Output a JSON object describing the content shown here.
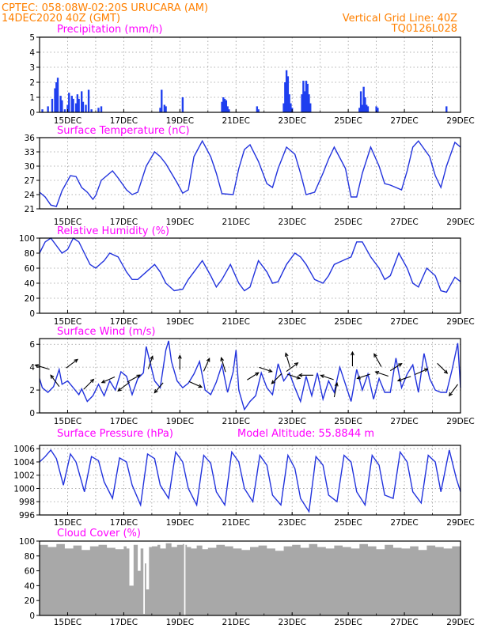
{
  "header": {
    "line1": "CPTEC:   058:08W-02:20S   URUCARA (AM)",
    "line2": "14DEC2020 40Z (GMT)",
    "grid_note": "Vertical Grid Line: 40Z",
    "code": "TQ0126L028"
  },
  "colors": {
    "header": "#ff8000",
    "panel_title": "#ff00ff",
    "series": "#2233dd",
    "bar": "#1f3fef",
    "cloud": "#a8a8a8",
    "arrow": "#000000"
  },
  "chart_data": [
    {
      "id": "precip",
      "type": "bar",
      "title": "Precipitation (mm/h)",
      "ylim": [
        0,
        5
      ],
      "yticks": [
        0,
        1,
        2,
        3,
        4,
        5
      ],
      "xticks": [
        "15DEC",
        "17DEC",
        "19DEC",
        "21DEC",
        "23DEC",
        "25DEC",
        "27DEC",
        "29DEC"
      ],
      "xlim_days": [
        14.0,
        29.0
      ],
      "grid": true,
      "x_day": [
        14.1,
        14.3,
        14.45,
        14.55,
        14.6,
        14.65,
        14.75,
        14.8,
        14.9,
        15.0,
        15.05,
        15.15,
        15.2,
        15.3,
        15.35,
        15.4,
        15.5,
        15.55,
        15.65,
        15.75,
        15.85,
        16.1,
        16.2,
        18.3,
        18.35,
        18.45,
        18.5,
        19.1,
        20.5,
        20.55,
        20.6,
        20.65,
        20.7,
        20.75,
        21.75,
        21.8,
        22.7,
        22.75,
        22.8,
        22.85,
        22.9,
        22.95,
        23.0,
        23.35,
        23.4,
        23.45,
        23.5,
        23.55,
        23.6,
        23.65,
        25.4,
        25.45,
        25.5,
        25.55,
        25.6,
        25.65,
        25.7,
        26.0,
        26.05,
        28.5
      ],
      "values": [
        0.2,
        0.4,
        0.9,
        1.6,
        2.0,
        2.3,
        1.1,
        0.8,
        0.2,
        0.5,
        1.3,
        1.1,
        0.9,
        0.6,
        1.2,
        0.9,
        1.4,
        0.7,
        0.5,
        1.5,
        0.2,
        0.3,
        0.4,
        0.3,
        1.5,
        0.5,
        0.4,
        1.0,
        0.7,
        1.0,
        0.9,
        0.8,
        0.4,
        0.2,
        0.4,
        0.2,
        0.6,
        2.0,
        2.8,
        2.4,
        1.2,
        0.6,
        0.3,
        1.2,
        2.1,
        1.4,
        2.1,
        1.9,
        1.2,
        0.6,
        0.3,
        1.4,
        0.5,
        1.7,
        1.0,
        0.5,
        0.4,
        0.4,
        0.3,
        0.4
      ]
    },
    {
      "id": "temp",
      "type": "line",
      "title": "Surface Temperature (nC)",
      "ylim": [
        21,
        36
      ],
      "yticks": [
        21,
        24,
        27,
        30,
        33,
        36
      ],
      "xticks": [
        "15DEC",
        "17DEC",
        "19DEC",
        "21DEC",
        "23DEC",
        "25DEC",
        "27DEC",
        "29DEC"
      ],
      "xlim_days": [
        14.0,
        29.0
      ],
      "grid": true,
      "x_day": [
        14.0,
        14.2,
        14.4,
        14.6,
        14.8,
        15.1,
        15.3,
        15.5,
        15.7,
        15.9,
        16.0,
        16.2,
        16.4,
        16.6,
        16.8,
        17.1,
        17.3,
        17.5,
        17.8,
        18.1,
        18.3,
        18.5,
        18.9,
        19.1,
        19.3,
        19.5,
        19.8,
        20.1,
        20.3,
        20.5,
        20.9,
        21.1,
        21.3,
        21.5,
        21.8,
        22.1,
        22.3,
        22.5,
        22.8,
        23.1,
        23.3,
        23.5,
        23.8,
        24.1,
        24.3,
        24.5,
        24.9,
        25.1,
        25.3,
        25.5,
        25.8,
        26.1,
        26.3,
        26.5,
        26.9,
        27.1,
        27.3,
        27.5,
        27.9,
        28.1,
        28.3,
        28.5,
        28.8,
        29.0
      ],
      "values": [
        24.5,
        23.5,
        21.8,
        21.5,
        24.8,
        28,
        27.8,
        25.5,
        24.5,
        23,
        23.8,
        27,
        28,
        29,
        27.5,
        25,
        24,
        24.5,
        30,
        33,
        32,
        30.5,
        26.5,
        24.3,
        25,
        32,
        35.3,
        32,
        28.5,
        24.2,
        24,
        29.5,
        33.5,
        34.5,
        31,
        26.3,
        25.5,
        29.5,
        34,
        32.5,
        28.5,
        24,
        24.5,
        28.5,
        31.5,
        34,
        29.5,
        23.5,
        23.5,
        28.5,
        34,
        30,
        26.3,
        26,
        25,
        29,
        34,
        35.3,
        32,
        28,
        25.5,
        30,
        35,
        34
      ]
    },
    {
      "id": "rh",
      "type": "line",
      "title": "Relative Humidity (%)",
      "ylim": [
        0,
        100
      ],
      "yticks": [
        0,
        20,
        40,
        60,
        80,
        100
      ],
      "xticks": [
        "15DEC",
        "17DEC",
        "19DEC",
        "21DEC",
        "23DEC",
        "25DEC",
        "27DEC",
        "29DEC"
      ],
      "xlim_days": [
        14.0,
        29.0
      ],
      "grid": true,
      "x_day": [
        14.0,
        14.2,
        14.4,
        14.6,
        14.8,
        15.0,
        15.2,
        15.4,
        15.6,
        15.8,
        16.0,
        16.3,
        16.5,
        16.8,
        17.1,
        17.3,
        17.5,
        17.8,
        18.1,
        18.3,
        18.5,
        18.8,
        19.1,
        19.3,
        19.5,
        19.8,
        20.1,
        20.3,
        20.5,
        20.8,
        21.1,
        21.3,
        21.5,
        21.8,
        22.1,
        22.3,
        22.5,
        22.8,
        23.1,
        23.3,
        23.5,
        23.8,
        24.1,
        24.3,
        24.5,
        24.8,
        25.1,
        25.3,
        25.5,
        25.8,
        26.1,
        26.3,
        26.5,
        26.8,
        27.1,
        27.3,
        27.5,
        27.8,
        28.1,
        28.3,
        28.5,
        28.8,
        29.0
      ],
      "values": [
        80,
        95,
        100,
        90,
        80,
        85,
        100,
        95,
        80,
        65,
        60,
        70,
        80,
        75,
        55,
        45,
        45,
        55,
        65,
        55,
        40,
        30,
        32,
        45,
        55,
        70,
        50,
        35,
        45,
        65,
        40,
        30,
        35,
        70,
        55,
        40,
        42,
        65,
        80,
        75,
        65,
        45,
        40,
        50,
        65,
        70,
        75,
        95,
        95,
        75,
        60,
        45,
        50,
        80,
        60,
        40,
        35,
        60,
        50,
        30,
        28,
        48,
        42
      ]
    },
    {
      "id": "wind",
      "type": "line",
      "title": "Surface Wind (m/s)",
      "ylim": [
        0,
        6.5
      ],
      "yticks": [
        0,
        2,
        4,
        6
      ],
      "xticks": [
        "15DEC",
        "17DEC",
        "19DEC",
        "21DEC",
        "23DEC",
        "25DEC",
        "27DEC",
        "29DEC"
      ],
      "xlim_days": [
        14.0,
        29.0
      ],
      "grid": true,
      "x_day": [
        14.0,
        14.1,
        14.3,
        14.5,
        14.7,
        14.8,
        15.0,
        15.2,
        15.4,
        15.5,
        15.7,
        15.9,
        16.1,
        16.3,
        16.5,
        16.7,
        16.9,
        17.1,
        17.3,
        17.5,
        17.7,
        17.8,
        17.9,
        18.1,
        18.3,
        18.5,
        18.6,
        18.7,
        18.9,
        19.1,
        19.3,
        19.5,
        19.7,
        19.9,
        20.1,
        20.3,
        20.5,
        20.7,
        20.9,
        21.0,
        21.1,
        21.3,
        21.5,
        21.7,
        21.9,
        22.1,
        22.3,
        22.5,
        22.7,
        22.9,
        23.1,
        23.3,
        23.5,
        23.7,
        23.9,
        24.1,
        24.3,
        24.5,
        24.7,
        24.9,
        25.1,
        25.3,
        25.5,
        25.7,
        25.9,
        26.1,
        26.3,
        26.5,
        26.7,
        26.9,
        27.1,
        27.3,
        27.5,
        27.7,
        27.9,
        28.1,
        28.3,
        28.5,
        28.7,
        28.9,
        29.0
      ],
      "values": [
        3.0,
        2.2,
        1.8,
        2.3,
        3.8,
        2.5,
        2.8,
        2.2,
        1.6,
        2.1,
        1.0,
        1.5,
        2.5,
        1.5,
        2.8,
        2.0,
        3.6,
        3.2,
        1.6,
        3.0,
        3.5,
        5.8,
        4.8,
        2.8,
        2.2,
        5.5,
        6.3,
        4.5,
        2.8,
        2.2,
        2.6,
        3.4,
        4.5,
        2.0,
        1.6,
        2.7,
        4.2,
        1.8,
        3.6,
        5.5,
        2.0,
        0.3,
        1.0,
        1.5,
        3.5,
        2.2,
        1.6,
        4.3,
        2.8,
        3.5,
        2.2,
        1.0,
        3.2,
        1.5,
        3.5,
        1.2,
        2.8,
        1.8,
        4.0,
        2.5,
        1.0,
        3.8,
        2.0,
        3.4,
        1.2,
        3.0,
        1.8,
        1.8,
        4.8,
        2.2,
        3.4,
        4.2,
        1.8,
        5.2,
        3.0,
        2.0,
        1.8,
        1.8,
        3.8,
        6.1,
        2.2
      ],
      "arrows": [
        {
          "x_day": 14.1,
          "y": 4.0,
          "dx": -1.0,
          "dy": 0.3
        },
        {
          "x_day": 14.55,
          "y": 2.8,
          "dx": -0.6,
          "dy": 0.8
        },
        {
          "x_day": 15.15,
          "y": 4.3,
          "dx": 0.8,
          "dy": 0.6
        },
        {
          "x_day": 15.75,
          "y": 2.5,
          "dx": 0.7,
          "dy": 0.7
        },
        {
          "x_day": 16.45,
          "y": 2.9,
          "dx": -0.9,
          "dy": -0.4
        },
        {
          "x_day": 17.0,
          "y": 2.3,
          "dx": -0.8,
          "dy": -0.6
        },
        {
          "x_day": 17.35,
          "y": 3.0,
          "dx": 0.9,
          "dy": 0.5
        },
        {
          "x_day": 17.95,
          "y": 4.4,
          "dx": 0.3,
          "dy": 0.9
        },
        {
          "x_day": 18.25,
          "y": 2.2,
          "dx": -0.6,
          "dy": -0.7
        },
        {
          "x_day": 19.0,
          "y": 4.4,
          "dx": 0.0,
          "dy": 1.0
        },
        {
          "x_day": 19.55,
          "y": 2.5,
          "dx": 0.9,
          "dy": -0.4
        },
        {
          "x_day": 19.95,
          "y": 4.2,
          "dx": 0.4,
          "dy": 0.9
        },
        {
          "x_day": 20.55,
          "y": 4.2,
          "dx": -0.3,
          "dy": 1.0
        },
        {
          "x_day": 21.6,
          "y": 3.2,
          "dx": 0.8,
          "dy": 0.5
        },
        {
          "x_day": 22.05,
          "y": 3.8,
          "dx": 0.9,
          "dy": -0.3
        },
        {
          "x_day": 22.45,
          "y": 3.0,
          "dx": -0.7,
          "dy": -0.7
        },
        {
          "x_day": 22.85,
          "y": 4.6,
          "dx": -0.3,
          "dy": 1.0
        },
        {
          "x_day": 23.0,
          "y": 4.0,
          "dx": 0.8,
          "dy": 0.6
        },
        {
          "x_day": 23.05,
          "y": 3.2,
          "dx": 0.9,
          "dy": -0.3
        },
        {
          "x_day": 23.5,
          "y": 3.3,
          "dx": -1.0,
          "dy": 0.0
        },
        {
          "x_day": 24.25,
          "y": 3.1,
          "dx": -0.9,
          "dy": 0.3
        },
        {
          "x_day": 24.55,
          "y": 2.0,
          "dx": 0.2,
          "dy": 1.0
        },
        {
          "x_day": 25.15,
          "y": 4.7,
          "dx": 0.0,
          "dy": 1.0
        },
        {
          "x_day": 25.55,
          "y": 3.2,
          "dx": -0.9,
          "dy": -0.3
        },
        {
          "x_day": 26.05,
          "y": 4.6,
          "dx": -0.5,
          "dy": 0.9
        },
        {
          "x_day": 26.2,
          "y": 3.4,
          "dx": -0.9,
          "dy": 0.3
        },
        {
          "x_day": 26.7,
          "y": 4.0,
          "dx": 0.8,
          "dy": 0.5
        },
        {
          "x_day": 27.0,
          "y": 3.0,
          "dx": -0.9,
          "dy": -0.3
        },
        {
          "x_day": 27.6,
          "y": 3.6,
          "dx": 0.9,
          "dy": 0.4
        },
        {
          "x_day": 28.35,
          "y": 3.9,
          "dx": 0.7,
          "dy": -0.7
        },
        {
          "x_day": 28.75,
          "y": 2.0,
          "dx": -0.6,
          "dy": -0.8
        }
      ]
    },
    {
      "id": "pres",
      "type": "line",
      "title": "Surface Pressure (hPa)",
      "annotation": "Model Altitude: 55.8844 m",
      "ylim": [
        996,
        1006.5
      ],
      "yticks": [
        996,
        998,
        1000,
        1002,
        1004,
        1006
      ],
      "xticks": [
        "15DEC",
        "17DEC",
        "19DEC",
        "21DEC",
        "23DEC",
        "25DEC",
        "27DEC",
        "29DEC"
      ],
      "xlim_days": [
        14.0,
        29.0
      ],
      "grid": true,
      "x_day": [
        14.0,
        14.2,
        14.4,
        14.6,
        14.85,
        15.1,
        15.3,
        15.6,
        15.85,
        16.1,
        16.3,
        16.6,
        16.85,
        17.1,
        17.3,
        17.6,
        17.85,
        18.1,
        18.3,
        18.6,
        18.85,
        19.1,
        19.3,
        19.6,
        19.85,
        20.1,
        20.3,
        20.6,
        20.85,
        21.1,
        21.3,
        21.6,
        21.85,
        22.1,
        22.3,
        22.6,
        22.85,
        23.1,
        23.3,
        23.6,
        23.85,
        24.1,
        24.3,
        24.6,
        24.85,
        25.1,
        25.3,
        25.6,
        25.85,
        26.1,
        26.3,
        26.6,
        26.85,
        27.1,
        27.3,
        27.6,
        27.85,
        28.1,
        28.3,
        28.6,
        28.85,
        29.0
      ],
      "values": [
        1004.0,
        1004.8,
        1005.8,
        1004.5,
        1000.5,
        1005.2,
        1004.0,
        999.5,
        1004.8,
        1004.2,
        1001.0,
        998.5,
        1004.6,
        1004.0,
        1000.5,
        997.5,
        1005.2,
        1004.5,
        1000.5,
        998.5,
        1005.5,
        1004.0,
        1000.0,
        997.5,
        1005.0,
        1003.8,
        999.5,
        997.5,
        1005.5,
        1004.0,
        1000.0,
        998.0,
        1005.0,
        1003.5,
        999.0,
        997.5,
        1005.0,
        1003.0,
        998.5,
        996.5,
        1004.8,
        1003.5,
        999.0,
        998.0,
        1005.0,
        1004.0,
        999.5,
        997.5,
        1005.0,
        1003.5,
        999.0,
        998.5,
        1005.5,
        1004.0,
        999.5,
        997.8,
        1005.0,
        1004.0,
        999.5,
        1005.8,
        1001.5,
        999.5
      ]
    },
    {
      "id": "cloud",
      "type": "area",
      "title": "Cloud Cover (%)",
      "ylim": [
        0,
        100
      ],
      "yticks": [
        0,
        20,
        40,
        60,
        80,
        100
      ],
      "xticks": [
        "15DEC",
        "17DEC",
        "19DEC",
        "21DEC",
        "23DEC",
        "25DEC",
        "27DEC",
        "29DEC"
      ],
      "xlim_days": [
        14.0,
        29.0
      ],
      "grid": false,
      "x_day": [
        14.0,
        14.3,
        14.6,
        14.9,
        15.2,
        15.5,
        15.8,
        16.1,
        16.4,
        16.7,
        17.0,
        17.1,
        17.2,
        17.35,
        17.5,
        17.6,
        17.7,
        17.75,
        17.8,
        17.9,
        18.0,
        18.2,
        18.3,
        18.5,
        18.7,
        18.9,
        19.1,
        19.15,
        19.2,
        19.25,
        19.4,
        19.6,
        19.8,
        20.0,
        20.3,
        20.6,
        20.9,
        21.2,
        21.5,
        21.8,
        22.1,
        22.4,
        22.7,
        23.0,
        23.3,
        23.6,
        23.9,
        24.2,
        24.5,
        24.8,
        25.1,
        25.4,
        25.7,
        26.0,
        26.3,
        26.6,
        26.9,
        27.2,
        27.5,
        27.8,
        28.1,
        28.4,
        28.7,
        29.0
      ],
      "values": [
        95,
        92,
        96,
        90,
        94,
        88,
        93,
        95,
        91,
        89,
        93,
        90,
        40,
        95,
        60,
        90,
        2,
        70,
        35,
        92,
        93,
        95,
        90,
        97,
        92,
        95,
        96,
        0,
        95,
        92,
        90,
        94,
        89,
        91,
        95,
        93,
        90,
        88,
        92,
        94,
        90,
        87,
        93,
        95,
        91,
        96,
        92,
        90,
        94,
        92,
        90,
        96,
        93,
        89,
        95,
        91,
        90,
        93,
        88,
        94,
        92,
        90,
        93,
        95
      ]
    }
  ]
}
